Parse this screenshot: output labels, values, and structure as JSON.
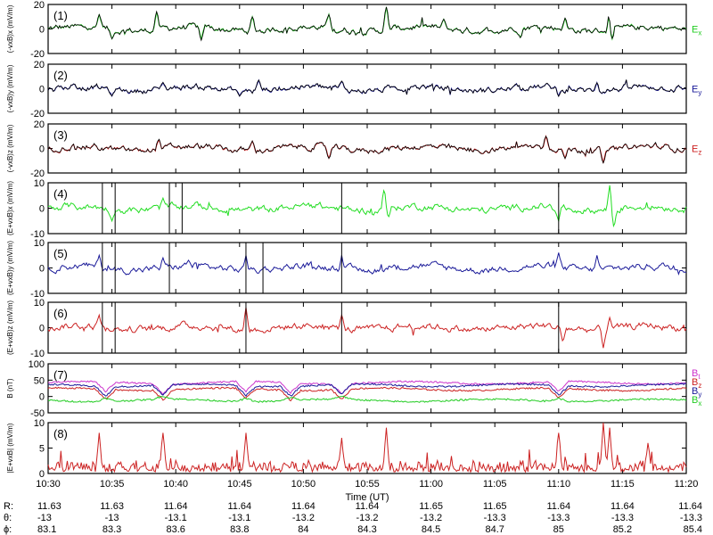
{
  "chart_data": {
    "type": "line",
    "time_axis": {
      "start": "10:30",
      "end": "11:20",
      "ticks": [
        "10:30",
        "10:35",
        "10:40",
        "10:45",
        "10:50",
        "10:55",
        "11:00",
        "11:05",
        "11:10",
        "11:15",
        "11:20"
      ],
      "label": "Time (UT)"
    },
    "panels": [
      {
        "id": "1",
        "ylabel": "(-vxB)x (mV/m)",
        "ylim": [
          -20,
          20
        ],
        "yticks": [
          "20",
          "0",
          "-20"
        ],
        "legend": [
          {
            "text": "Ex",
            "color": "#22cc22"
          }
        ],
        "series": [
          {
            "color": "#22cc22",
            "width": 1.0
          },
          {
            "color": "#000000",
            "width": 0.8
          }
        ],
        "spikes": [
          {
            "t": "10:34",
            "v": 12,
            "series": 0
          },
          {
            "t": "10:35",
            "v": -8,
            "series": 0
          },
          {
            "t": "10:38:30",
            "v": 14,
            "series": 0
          },
          {
            "t": "10:42",
            "v": -9,
            "series": 0
          },
          {
            "t": "10:46",
            "v": 10,
            "series": 0
          },
          {
            "t": "10:52",
            "v": 12,
            "series": 0
          },
          {
            "t": "10:56:30",
            "v": 18,
            "series": 0
          },
          {
            "t": "11:01",
            "v": 8,
            "series": 0
          },
          {
            "t": "11:07",
            "v": -7,
            "series": 0
          },
          {
            "t": "11:10:30",
            "v": 9,
            "series": 0
          },
          {
            "t": "11:14",
            "v": 14,
            "series": 0
          },
          {
            "t": "11:14:10",
            "v": -10,
            "series": 0
          }
        ]
      },
      {
        "id": "2",
        "ylabel": "(-vxB)y (mV/m)",
        "ylim": [
          -20,
          20
        ],
        "yticks": [
          "20",
          "0",
          "-20"
        ],
        "legend": [
          {
            "text": "Ey",
            "color": "#1a1a99"
          }
        ],
        "series": [
          {
            "color": "#1a1a99",
            "width": 1.0
          },
          {
            "color": "#000000",
            "width": 0.8
          }
        ],
        "spikes": [
          {
            "t": "10:32",
            "v": 4,
            "series": 0
          },
          {
            "t": "10:35",
            "v": -6,
            "series": 0
          },
          {
            "t": "10:39",
            "v": 5,
            "series": 0
          },
          {
            "t": "10:45",
            "v": -6,
            "series": 0
          },
          {
            "t": "10:46:30",
            "v": 7,
            "series": 0
          },
          {
            "t": "10:53",
            "v": 6,
            "series": 0
          },
          {
            "t": "11:10",
            "v": -6,
            "series": 0
          },
          {
            "t": "11:13",
            "v": 5,
            "series": 0
          }
        ]
      },
      {
        "id": "3",
        "ylabel": "(-vxB)z (mV/m)",
        "ylim": [
          -20,
          20
        ],
        "yticks": [
          "20",
          "0",
          "-20"
        ],
        "legend": [
          {
            "text": "Ez",
            "color": "#cc2222"
          }
        ],
        "series": [
          {
            "color": "#cc2222",
            "width": 1.0
          },
          {
            "color": "#000000",
            "width": 0.8
          }
        ],
        "spikes": [
          {
            "t": "10:38:40",
            "v": 8,
            "series": 0
          },
          {
            "t": "10:46",
            "v": 6,
            "series": 0
          },
          {
            "t": "10:52",
            "v": -8,
            "series": 0
          },
          {
            "t": "11:09",
            "v": 10,
            "series": 0
          },
          {
            "t": "11:10:30",
            "v": -8,
            "series": 0
          },
          {
            "t": "11:13:30",
            "v": -12,
            "series": 0
          }
        ]
      },
      {
        "id": "4",
        "ylabel": "(E+vxB)x (mV/m)",
        "ylim": [
          -10,
          10
        ],
        "yticks": [
          "10",
          "0",
          "-10"
        ],
        "legend": [],
        "series": [
          {
            "color": "#22dd22",
            "width": 1.0
          }
        ],
        "spikes": [
          {
            "t": "10:35",
            "v": -5,
            "series": 0
          },
          {
            "t": "10:39",
            "v": 4,
            "series": 0
          },
          {
            "t": "10:56:20",
            "v": 8,
            "series": 0
          },
          {
            "t": "10:56:40",
            "v": -4,
            "series": 0
          },
          {
            "t": "11:10",
            "v": -5,
            "series": 0
          },
          {
            "t": "11:14",
            "v": 9,
            "series": 0
          },
          {
            "t": "11:14:20",
            "v": -8,
            "series": 0
          }
        ],
        "vlines": [
          "10:34:15",
          "10:35:15",
          "10:39:30",
          "10:40:30",
          "10:53",
          "11:10"
        ]
      },
      {
        "id": "5",
        "ylabel": "(E+vxB)y (mV/m)",
        "ylim": [
          -10,
          10
        ],
        "yticks": [
          "10",
          "0",
          "-10"
        ],
        "legend": [],
        "series": [
          {
            "color": "#1a1a99",
            "width": 1.0
          }
        ],
        "spikes": [
          {
            "t": "10:34",
            "v": 5,
            "series": 0
          },
          {
            "t": "10:39",
            "v": 4,
            "series": 0
          },
          {
            "t": "10:41",
            "v": 3,
            "series": 0
          },
          {
            "t": "10:45:30",
            "v": 5,
            "series": 0
          },
          {
            "t": "10:53",
            "v": 5,
            "series": 0
          },
          {
            "t": "11:10",
            "v": 6,
            "series": 0
          },
          {
            "t": "11:13",
            "v": 5,
            "series": 0
          }
        ],
        "vlines": [
          "10:34:15",
          "10:35:15",
          "10:39:30",
          "10:45:30",
          "10:46:50",
          "10:53"
        ]
      },
      {
        "id": "6",
        "ylabel": "(E+vxB)z (mV/m)",
        "ylim": [
          -10,
          10
        ],
        "yticks": [
          "10",
          "0",
          "-10"
        ],
        "legend": [],
        "series": [
          {
            "color": "#cc2222",
            "width": 1.0
          }
        ],
        "spikes": [
          {
            "t": "10:34",
            "v": 5,
            "series": 0
          },
          {
            "t": "10:45:30",
            "v": 8,
            "series": 0
          },
          {
            "t": "10:53",
            "v": 5,
            "series": 0
          },
          {
            "t": "11:10:20",
            "v": -6,
            "series": 0
          },
          {
            "t": "11:13:30",
            "v": -8,
            "series": 0
          },
          {
            "t": "11:14",
            "v": 4,
            "series": 0
          }
        ],
        "vlines": [
          "10:34:15",
          "10:35:15",
          "10:45:30",
          "10:53",
          "11:10"
        ]
      },
      {
        "id": "7",
        "ylabel": "B (nT)",
        "ylim": [
          -50,
          100
        ],
        "yticks": [
          "100",
          "50",
          "0",
          "-50"
        ],
        "legend": [
          {
            "text": "Bt",
            "color": "#cc33cc"
          },
          {
            "text": "Bz",
            "color": "#cc2222"
          },
          {
            "text": "By",
            "color": "#1a1a99"
          },
          {
            "text": "Bx",
            "color": "#22cc22"
          }
        ],
        "series": [
          {
            "name": "Bt",
            "color": "#cc33cc",
            "width": 1.0,
            "base": 42
          },
          {
            "name": "Bz",
            "color": "#cc2222",
            "width": 1.0,
            "base": 22
          },
          {
            "name": "By",
            "color": "#1a1a99",
            "width": 1.0,
            "base": 34
          },
          {
            "name": "Bx",
            "color": "#22cc22",
            "width": 1.0,
            "base": -12
          }
        ],
        "dips": [
          "10:34:30",
          "10:39",
          "10:45:30",
          "10:49",
          "10:53",
          "11:10"
        ]
      },
      {
        "id": "8",
        "ylabel": "|E+vxB| (mV/m)",
        "ylim": [
          0,
          10
        ],
        "yticks": [
          "10",
          "5",
          "0"
        ],
        "legend": [],
        "series": [
          {
            "color": "#cc2222",
            "width": 1.0
          }
        ],
        "spikes": [
          {
            "t": "10:34",
            "v": 8,
            "series": 0
          },
          {
            "t": "10:39",
            "v": 8,
            "series": 0
          },
          {
            "t": "10:45:30",
            "v": 8,
            "series": 0
          },
          {
            "t": "10:53",
            "v": 7,
            "series": 0
          },
          {
            "t": "10:56:30",
            "v": 9,
            "series": 0
          },
          {
            "t": "11:10",
            "v": 8,
            "series": 0
          },
          {
            "t": "11:13:30",
            "v": 10,
            "series": 0
          },
          {
            "t": "11:14",
            "v": 9,
            "series": 0
          },
          {
            "t": "11:17",
            "v": 6,
            "series": 0
          }
        ]
      }
    ],
    "orbit_table": {
      "row_labels": [
        "R:",
        "θ:",
        "ϕ:"
      ],
      "R": [
        "11.63",
        "11.63",
        "11.64",
        "11.64",
        "11.64",
        "11.64",
        "11.65",
        "11.65",
        "11.64",
        "11.64",
        "11.64"
      ],
      "theta": [
        "-13",
        "-13",
        "-13.1",
        "-13.1",
        "-13.2",
        "-13.2",
        "-13.2",
        "-13.3",
        "-13.3",
        "-13.3",
        "-13.3"
      ],
      "phi": [
        "83.1",
        "83.3",
        "83.6",
        "83.8",
        "84",
        "84.3",
        "84.5",
        "84.7",
        "85",
        "85.2",
        "85.4"
      ]
    }
  }
}
